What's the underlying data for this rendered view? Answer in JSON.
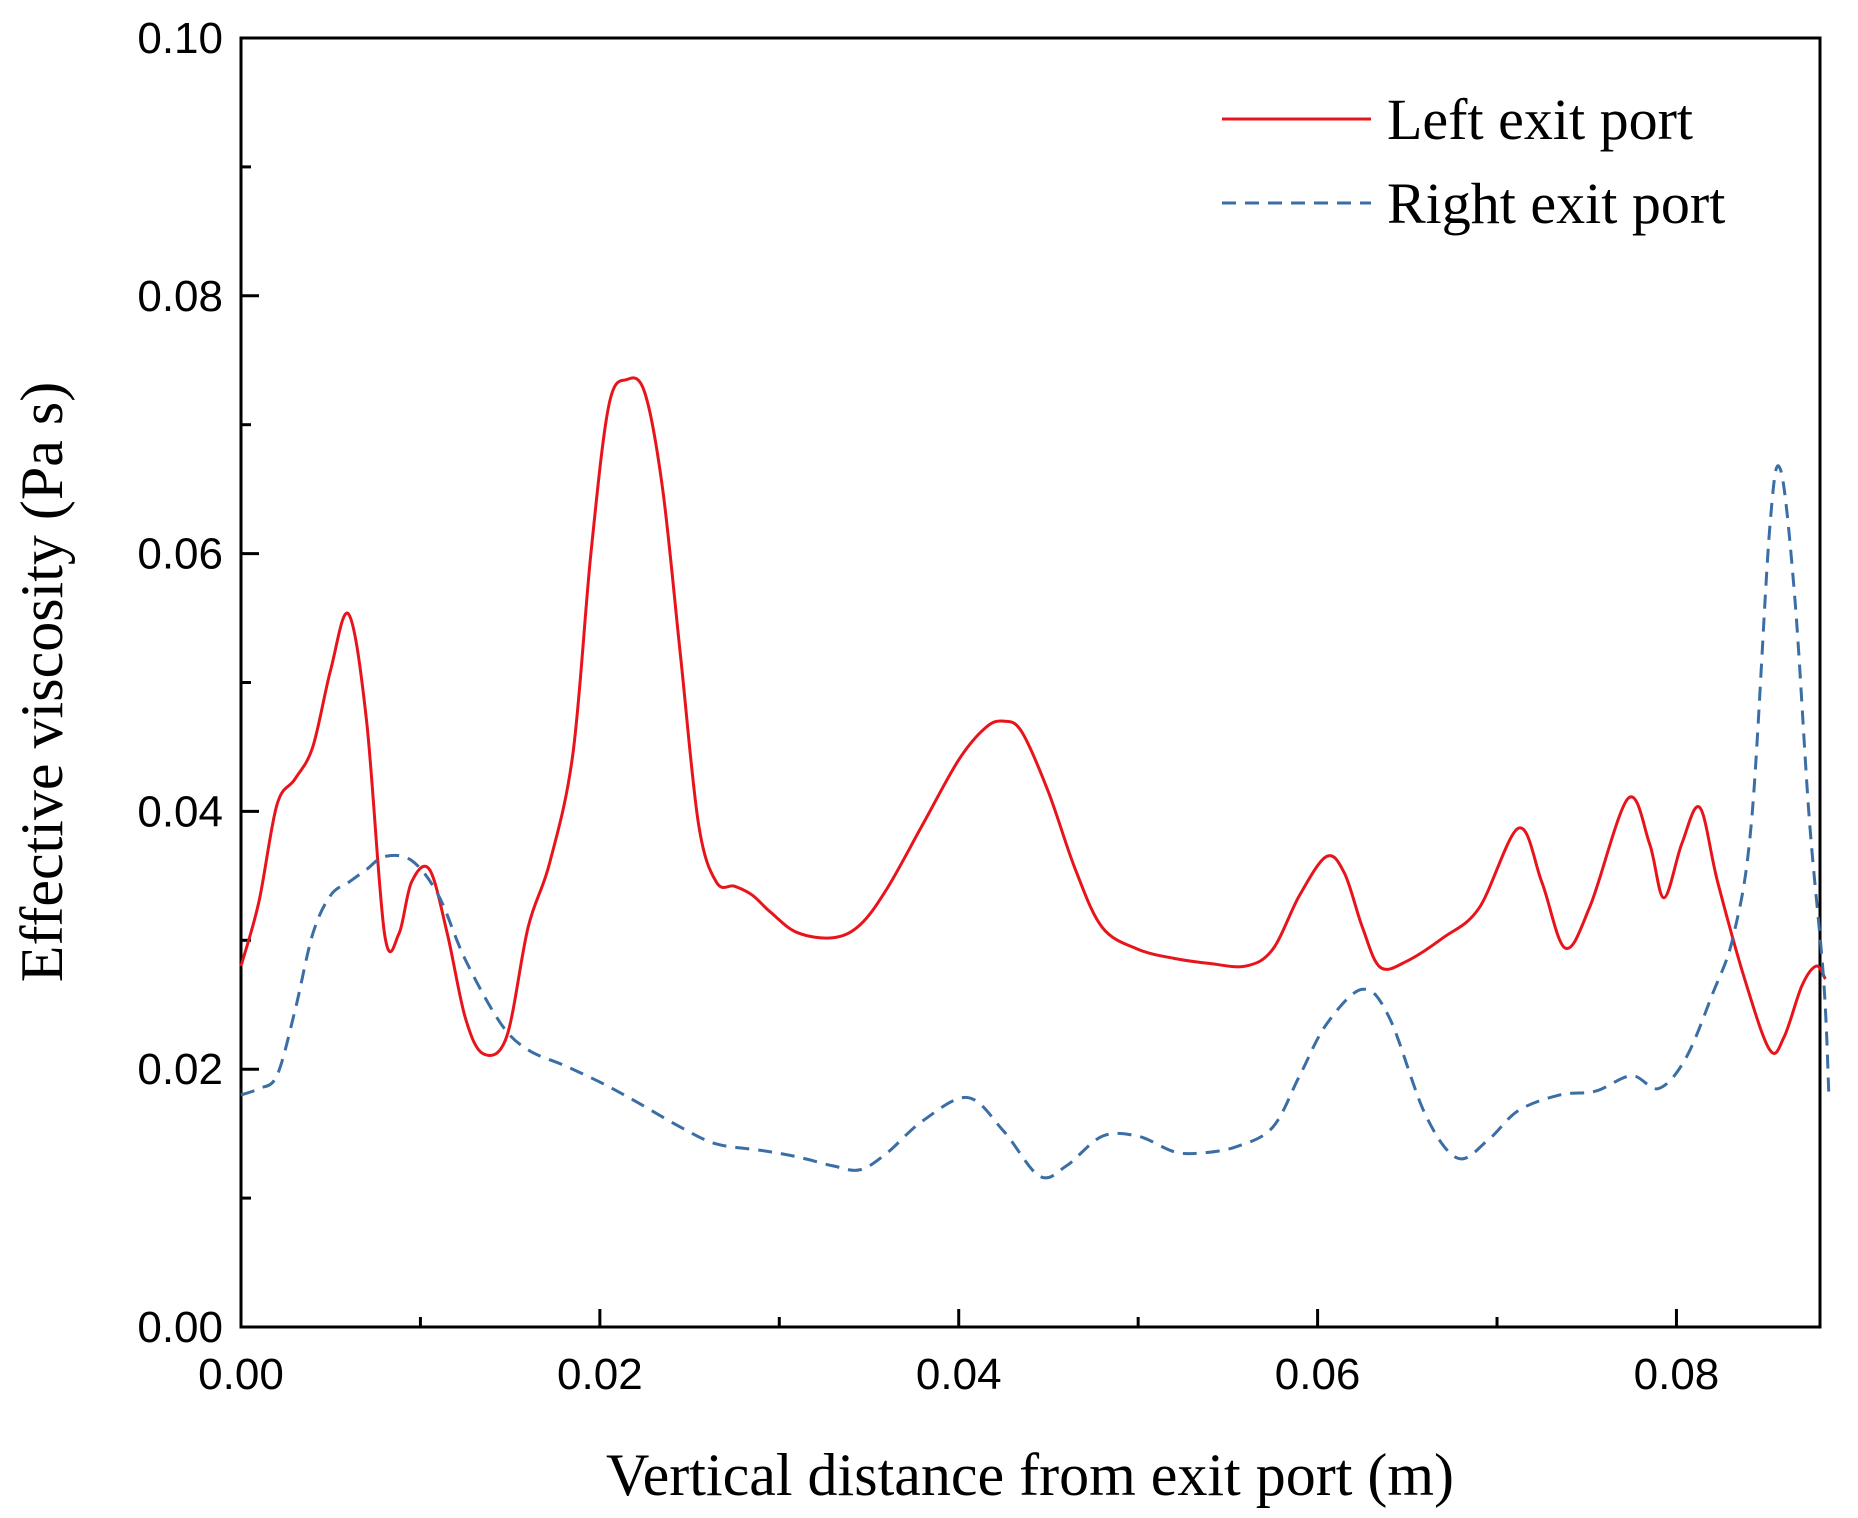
{
  "chart_data": {
    "type": "line",
    "title": "",
    "xlabel": "Vertical distance from exit port (m)",
    "ylabel": "Effective viscosity (Pa s)",
    "xlim": [
      0.0,
      0.088
    ],
    "ylim": [
      0.0,
      0.1
    ],
    "x_ticks": [
      0.0,
      0.02,
      0.04,
      0.06,
      0.08
    ],
    "x_tick_labels": [
      "0.00",
      "0.02",
      "0.04",
      "0.06",
      "0.08"
    ],
    "x_minor_ticks": [
      0.01,
      0.03,
      0.05,
      0.07
    ],
    "y_ticks": [
      0.0,
      0.02,
      0.04,
      0.06,
      0.08,
      0.1
    ],
    "y_tick_labels": [
      "0.00",
      "0.02",
      "0.04",
      "0.06",
      "0.08",
      "0.10"
    ],
    "y_minor_ticks": [
      0.01,
      0.03,
      0.05,
      0.07,
      0.09
    ],
    "grid": false,
    "legend_position": "top-right",
    "series": [
      {
        "name": "Left exit port",
        "color": "#e8141c",
        "dash": "solid",
        "x": [
          0.0,
          0.001,
          0.002,
          0.003,
          0.004,
          0.005,
          0.006,
          0.007,
          0.008,
          0.0088,
          0.0095,
          0.0105,
          0.0115,
          0.0125,
          0.0135,
          0.0148,
          0.016,
          0.0172,
          0.0185,
          0.0195,
          0.0205,
          0.0215,
          0.0225,
          0.0235,
          0.0245,
          0.0255,
          0.0265,
          0.0275,
          0.0285,
          0.0295,
          0.031,
          0.033,
          0.0345,
          0.036,
          0.038,
          0.04,
          0.0415,
          0.0425,
          0.0435,
          0.045,
          0.0465,
          0.048,
          0.05,
          0.052,
          0.054,
          0.056,
          0.0575,
          0.059,
          0.0605,
          0.0615,
          0.0625,
          0.0635,
          0.065,
          0.067,
          0.069,
          0.0712,
          0.0725,
          0.0738,
          0.0752,
          0.0773,
          0.0785,
          0.0793,
          0.0803,
          0.0813,
          0.0823,
          0.0838,
          0.0852,
          0.086,
          0.087,
          0.0878,
          0.0883
        ],
        "y": [
          0.028,
          0.033,
          0.0405,
          0.0425,
          0.045,
          0.051,
          0.0553,
          0.047,
          0.0305,
          0.0305,
          0.0345,
          0.0355,
          0.0305,
          0.024,
          0.0212,
          0.0225,
          0.031,
          0.036,
          0.0445,
          0.06,
          0.0715,
          0.0735,
          0.0725,
          0.065,
          0.052,
          0.039,
          0.0345,
          0.0342,
          0.0335,
          0.0322,
          0.0306,
          0.0302,
          0.0312,
          0.034,
          0.039,
          0.044,
          0.0465,
          0.047,
          0.0462,
          0.0415,
          0.0355,
          0.031,
          0.0293,
          0.0286,
          0.0282,
          0.028,
          0.0293,
          0.0335,
          0.0365,
          0.0352,
          0.031,
          0.0279,
          0.0284,
          0.0302,
          0.0325,
          0.0387,
          0.0345,
          0.0294,
          0.0327,
          0.041,
          0.0375,
          0.0333,
          0.0375,
          0.0403,
          0.0345,
          0.027,
          0.0215,
          0.0225,
          0.0265,
          0.028,
          0.027
        ]
      },
      {
        "name": "Right exit port",
        "color": "#3a6ea5",
        "dash": "dashed",
        "x": [
          0.0,
          0.001,
          0.002,
          0.003,
          0.004,
          0.005,
          0.006,
          0.007,
          0.008,
          0.0095,
          0.011,
          0.0125,
          0.0145,
          0.016,
          0.018,
          0.02,
          0.022,
          0.0245,
          0.0265,
          0.029,
          0.031,
          0.033,
          0.0345,
          0.036,
          0.038,
          0.0405,
          0.0425,
          0.0445,
          0.046,
          0.048,
          0.05,
          0.052,
          0.0535,
          0.0555,
          0.0575,
          0.059,
          0.0605,
          0.0625,
          0.064,
          0.066,
          0.0678,
          0.0695,
          0.0712,
          0.0735,
          0.0755,
          0.0775,
          0.079,
          0.0805,
          0.082,
          0.0832,
          0.0842,
          0.0852,
          0.0858,
          0.0866,
          0.0874,
          0.0882,
          0.0885
        ],
        "y": [
          0.018,
          0.0185,
          0.0195,
          0.0245,
          0.0305,
          0.0335,
          0.0345,
          0.0355,
          0.0365,
          0.0362,
          0.0335,
          0.0285,
          0.0235,
          0.0215,
          0.0203,
          0.019,
          0.0175,
          0.0155,
          0.0142,
          0.0137,
          0.0132,
          0.0125,
          0.0122,
          0.0135,
          0.016,
          0.0178,
          0.0152,
          0.0117,
          0.0125,
          0.0148,
          0.0148,
          0.0136,
          0.0135,
          0.014,
          0.0155,
          0.0195,
          0.0235,
          0.0262,
          0.024,
          0.0165,
          0.0131,
          0.0145,
          0.0168,
          0.018,
          0.0183,
          0.0195,
          0.0185,
          0.0208,
          0.0258,
          0.0305,
          0.0395,
          0.062,
          0.0665,
          0.0565,
          0.0395,
          0.027,
          0.0178
        ]
      }
    ]
  }
}
